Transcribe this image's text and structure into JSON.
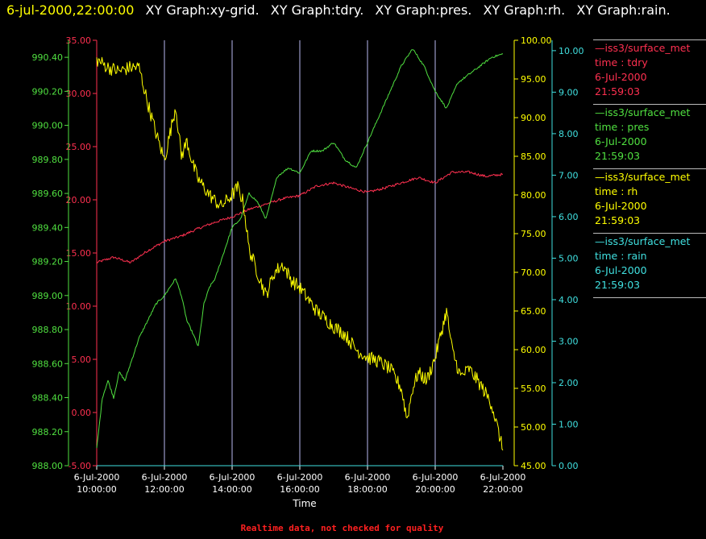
{
  "header": {
    "timestamp": "6-jul-2000,22:00:00",
    "graph_labels": [
      "XY Graph:xy-grid.",
      "XY Graph:tdry.",
      "XY Graph:pres.",
      "XY Graph:rh.",
      "XY Graph:rain."
    ]
  },
  "colors": {
    "background": "#000000",
    "tdry": "#ff3050",
    "pres": "#50e040",
    "rh": "#ffff00",
    "rain": "#40e0e0",
    "grid": "#b8b8f0",
    "text": "#ffffff",
    "timestamp": "#ffff00",
    "footer": "#ff2020"
  },
  "legend": [
    {
      "id": "tdry",
      "source": "—iss3/surface_met",
      "line2": "time : tdry",
      "date": "6-Jul-2000",
      "time": "21:59:03"
    },
    {
      "id": "pres",
      "source": "—iss3/surface_met",
      "line2": "time : pres",
      "date": "6-Jul-2000",
      "time": "21:59:03"
    },
    {
      "id": "rh",
      "source": "—iss3/surface_met",
      "line2": "time : rh",
      "date": "6-Jul-2000",
      "time": "21:59:03"
    },
    {
      "id": "rain",
      "source": "—iss3/surface_met",
      "line2": "time : rain",
      "date": "6-Jul-2000",
      "time": "21:59:03"
    }
  ],
  "footer": "Realtime data, not checked for quality",
  "chart_data": {
    "type": "line",
    "xlabel": "Time",
    "xlim": [
      "2000-07-06 10:00",
      "2000-07-06 22:00"
    ],
    "x_ticks": [
      {
        "date": "6-Jul-2000",
        "time": "10:00:00"
      },
      {
        "date": "6-Jul-2000",
        "time": "12:00:00"
      },
      {
        "date": "6-Jul-2000",
        "time": "14:00:00"
      },
      {
        "date": "6-Jul-2000",
        "time": "16:00:00"
      },
      {
        "date": "6-Jul-2000",
        "time": "18:00:00"
      },
      {
        "date": "6-Jul-2000",
        "time": "20:00:00"
      },
      {
        "date": "6-Jul-2000",
        "time": "22:00:00"
      }
    ],
    "grid_x": true,
    "axes": {
      "tdry": {
        "side": "left-inner",
        "ylim": [
          -5,
          35
        ],
        "ticks": [
          "-5.00",
          "0.00",
          "5.00",
          "10.00",
          "15.00",
          "20.00",
          "25.00",
          "30.00",
          "35.00"
        ]
      },
      "pres": {
        "side": "left-outer",
        "ylim": [
          988,
          990.5
        ],
        "ticks": [
          "988.00",
          "988.20",
          "988.40",
          "988.60",
          "988.80",
          "989.00",
          "989.20",
          "989.40",
          "989.60",
          "989.80",
          "990.00",
          "990.20",
          "990.40"
        ]
      },
      "rh": {
        "side": "right-inner",
        "ylim": [
          45,
          100
        ],
        "ticks": [
          "45.00",
          "50.00",
          "55.00",
          "60.00",
          "65.00",
          "70.00",
          "75.00",
          "80.00",
          "85.00",
          "90.00",
          "95.00",
          "100.00"
        ]
      },
      "rain": {
        "side": "right-outer",
        "ylim": [
          0,
          10.25
        ],
        "ticks": [
          "0.00",
          "1.00",
          "2.00",
          "3.00",
          "4.00",
          "5.00",
          "6.00",
          "7.00",
          "8.00",
          "9.00",
          "10.00"
        ]
      }
    },
    "series": [
      {
        "id": "tdry",
        "name": "iss3/surface_met time : tdry",
        "jitter": 0.12,
        "x": [
          "10:00",
          "10:30",
          "11:00",
          "11:30",
          "12:00",
          "12:30",
          "13:00",
          "13:30",
          "14:00",
          "14:30",
          "15:00",
          "15:30",
          "16:00",
          "16:30",
          "17:00",
          "17:30",
          "18:00",
          "18:30",
          "19:00",
          "19:30",
          "20:00",
          "20:30",
          "21:00",
          "21:30",
          "22:00"
        ],
        "y": [
          14.1,
          14.6,
          14.1,
          15.2,
          16.1,
          16.6,
          17.3,
          17.9,
          18.4,
          19.1,
          19.6,
          20.1,
          20.4,
          21.3,
          21.6,
          21.1,
          20.7,
          21.1,
          21.6,
          22.1,
          21.6,
          22.6,
          22.6,
          22.2,
          22.4
        ]
      },
      {
        "id": "pres",
        "name": "iss3/surface_met time : pres",
        "jitter": 0.006,
        "x": [
          "10:00",
          "10:10",
          "10:20",
          "10:30",
          "10:40",
          "10:50",
          "11:00",
          "11:15",
          "11:30",
          "11:45",
          "12:00",
          "12:10",
          "12:20",
          "12:30",
          "12:40",
          "12:50",
          "13:00",
          "13:10",
          "13:20",
          "13:30",
          "13:40",
          "13:50",
          "14:00",
          "14:15",
          "14:30",
          "14:45",
          "15:00",
          "15:20",
          "15:40",
          "16:00",
          "16:20",
          "16:40",
          "17:00",
          "17:20",
          "17:40",
          "18:00",
          "18:20",
          "18:40",
          "19:00",
          "19:20",
          "19:40",
          "20:00",
          "20:20",
          "20:40",
          "21:00",
          "21:20",
          "21:40",
          "22:00"
        ],
        "y": [
          988.1,
          988.4,
          988.5,
          988.4,
          988.55,
          988.5,
          988.6,
          988.75,
          988.85,
          988.95,
          989.0,
          989.05,
          989.1,
          989.0,
          988.85,
          988.78,
          988.7,
          988.95,
          989.05,
          989.1,
          989.2,
          989.3,
          989.4,
          989.45,
          989.6,
          989.55,
          989.45,
          989.7,
          989.75,
          989.72,
          989.85,
          989.85,
          989.9,
          989.8,
          989.75,
          989.9,
          990.05,
          990.2,
          990.35,
          990.45,
          990.35,
          990.2,
          990.1,
          990.25,
          990.3,
          990.35,
          990.4,
          990.42
        ]
      },
      {
        "id": "rh",
        "name": "iss3/surface_met time : rh",
        "jitter": 0.9,
        "x": [
          "10:00",
          "10:20",
          "10:40",
          "11:00",
          "11:15",
          "11:30",
          "11:45",
          "12:00",
          "12:10",
          "12:20",
          "12:30",
          "12:40",
          "12:50",
          "13:00",
          "13:20",
          "13:40",
          "14:00",
          "14:10",
          "14:20",
          "14:30",
          "14:40",
          "14:50",
          "15:00",
          "15:15",
          "15:30",
          "15:45",
          "16:00",
          "16:15",
          "16:30",
          "17:00",
          "17:20",
          "17:40",
          "18:00",
          "18:20",
          "18:40",
          "19:00",
          "19:10",
          "19:20",
          "19:30",
          "19:45",
          "20:00",
          "20:10",
          "20:20",
          "20:30",
          "20:45",
          "21:00",
          "21:20",
          "21:40",
          "22:00"
        ],
        "y": [
          97.5,
          96.5,
          96.0,
          96.5,
          96.5,
          92.0,
          88.0,
          84.5,
          88.0,
          91.5,
          85.0,
          87.0,
          84.0,
          82.0,
          80.0,
          78.5,
          80.0,
          81.0,
          79.0,
          73.0,
          71.0,
          69.0,
          67.0,
          70.0,
          71.0,
          69.0,
          68.0,
          66.5,
          65.0,
          63.0,
          62.0,
          60.0,
          59.0,
          58.5,
          57.5,
          55.0,
          51.0,
          55.0,
          57.0,
          56.0,
          59.0,
          62.0,
          65.0,
          60.0,
          56.5,
          57.5,
          55.5,
          53.0,
          47.0
        ]
      },
      {
        "id": "rain",
        "name": "iss3/surface_met time : rain",
        "jitter": 0,
        "x": [
          "10:00",
          "22:00"
        ],
        "y": [
          0.0,
          0.0
        ]
      }
    ]
  }
}
